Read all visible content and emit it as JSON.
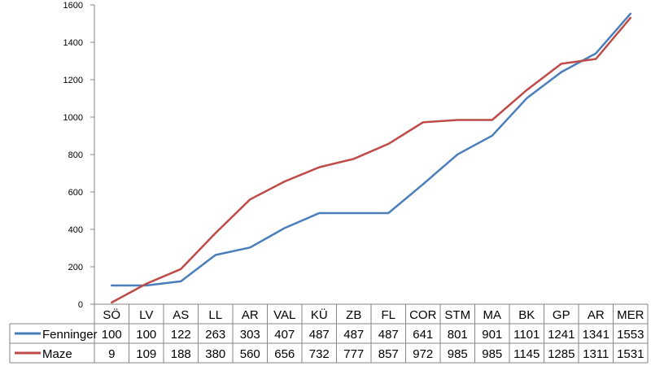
{
  "chart_data": {
    "type": "line",
    "categories": [
      "SÖ",
      "LV",
      "AS",
      "LL",
      "AR",
      "VAL",
      "KÜ",
      "ZB",
      "FL",
      "COR",
      "STM",
      "MA",
      "BK",
      "GP",
      "AR",
      "MER"
    ],
    "series": [
      {
        "name": "Fenninger",
        "color": "#4a7ebb",
        "values": [
          100,
          100,
          122,
          263,
          303,
          407,
          487,
          487,
          487,
          641,
          801,
          901,
          1101,
          1241,
          1341,
          1553
        ]
      },
      {
        "name": "Maze",
        "color": "#be4b48",
        "values": [
          9,
          109,
          188,
          380,
          560,
          656,
          732,
          777,
          857,
          972,
          985,
          985,
          1145,
          1285,
          1311,
          1531
        ]
      }
    ],
    "ylim": [
      0,
      1600
    ],
    "yticks": [
      0,
      200,
      400,
      600,
      800,
      1000,
      1200,
      1400,
      1600
    ],
    "grid": false,
    "legend": "data-table"
  }
}
